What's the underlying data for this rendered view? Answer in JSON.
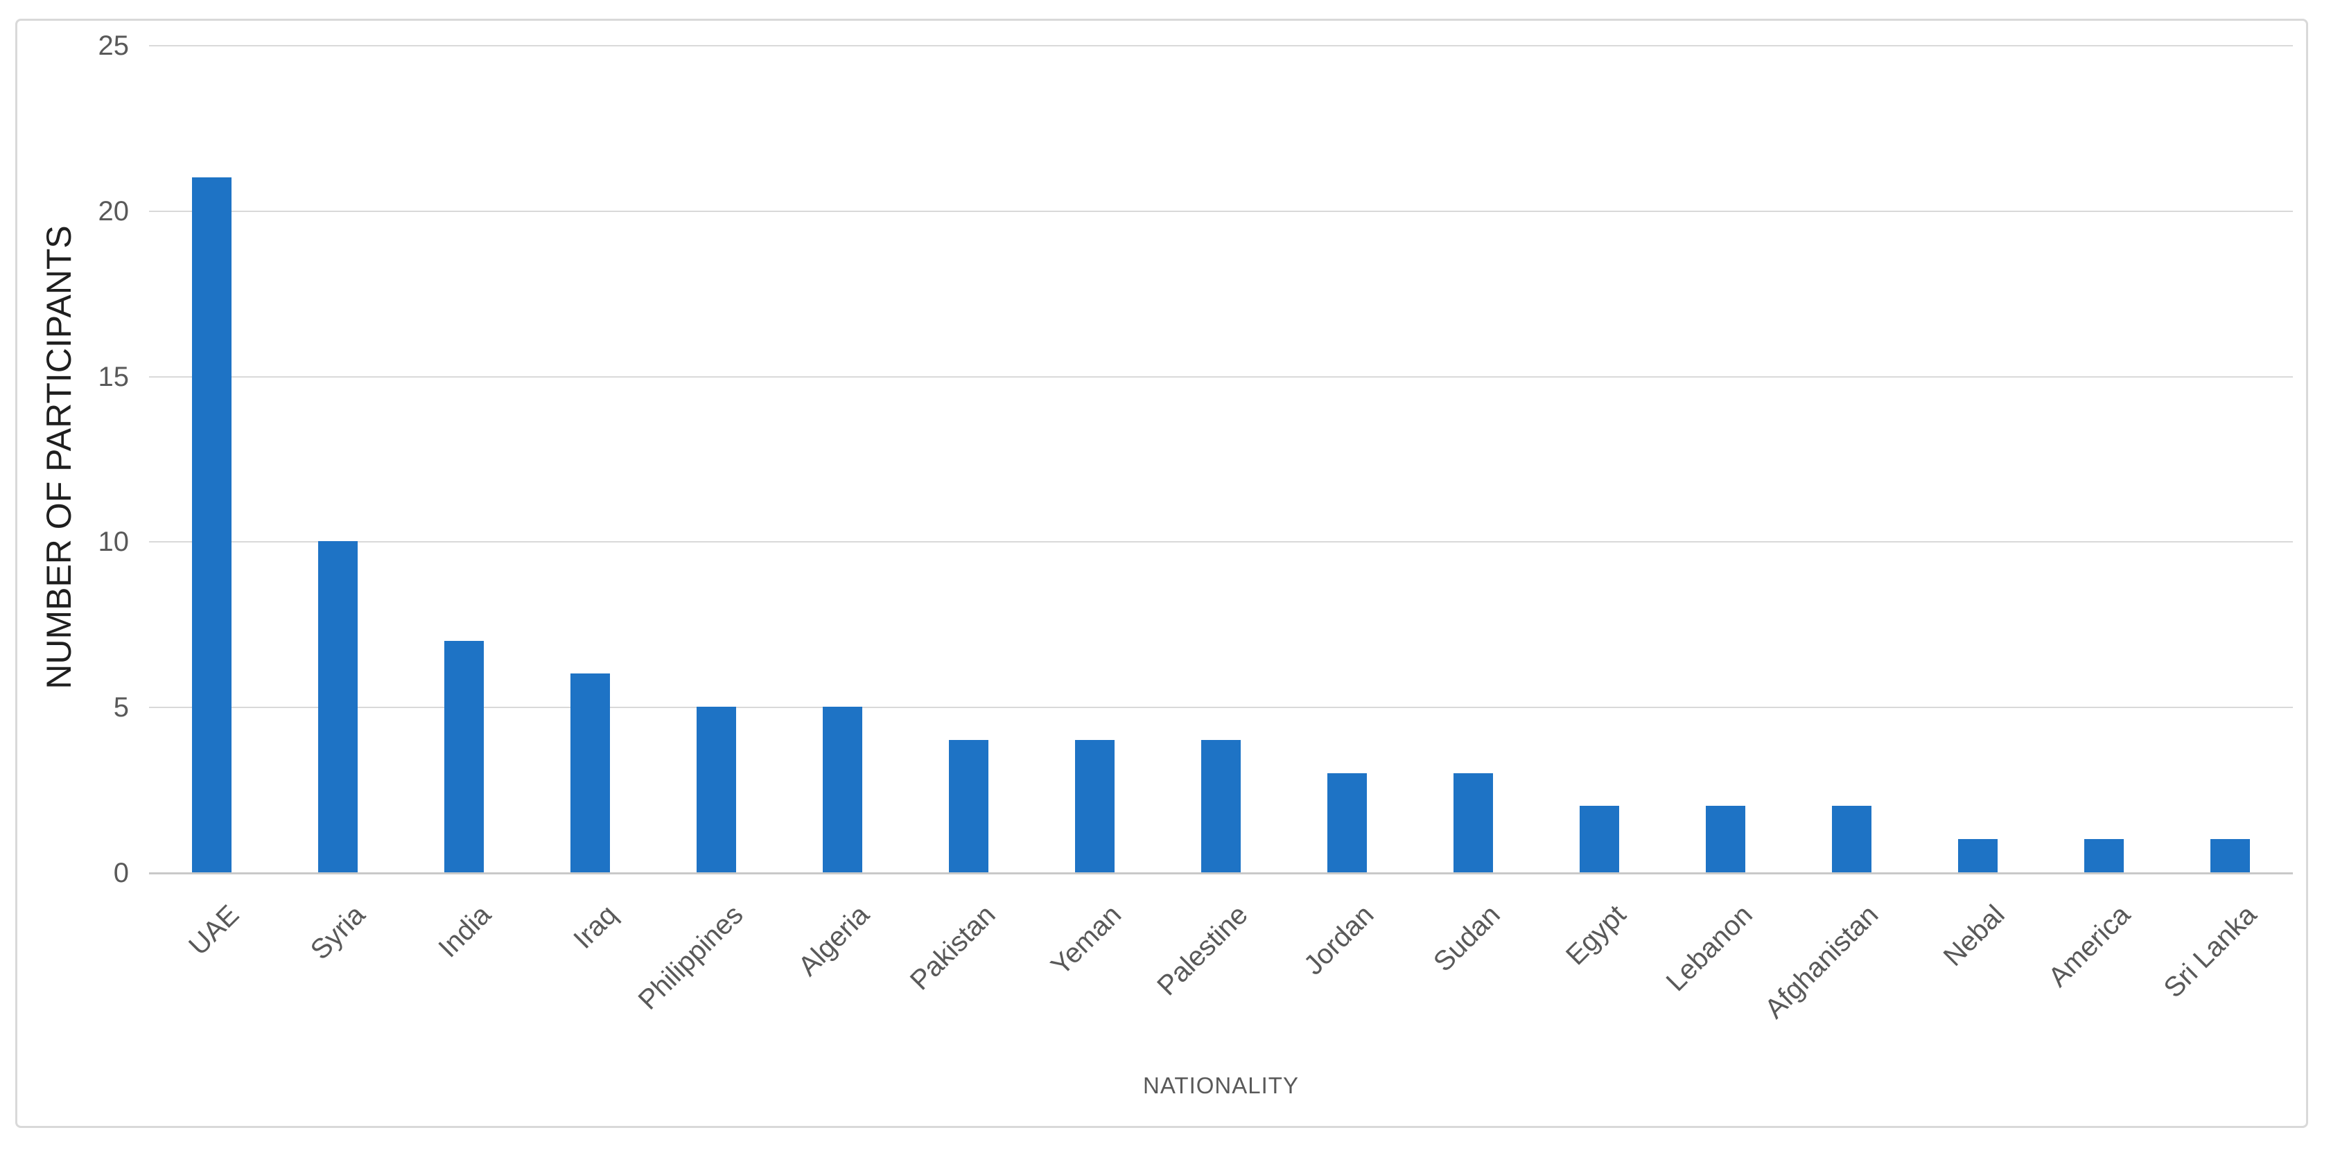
{
  "chart_data": {
    "type": "bar",
    "title": "",
    "xlabel": "NATIONALITY",
    "ylabel": "NUMBER OF PARTICIPANTS",
    "categories": [
      "UAE",
      "Syria",
      "India",
      "Iraq",
      "Philippines",
      "Algeria",
      "Pakistan",
      "Yeman",
      "Palestine",
      "Jordan",
      "Sudan",
      "Egypt",
      "Lebanon",
      "Afghanistan",
      "Nebal",
      "America",
      "Sri Lanka"
    ],
    "values": [
      21,
      10,
      7,
      6,
      5,
      5,
      4,
      4,
      4,
      3,
      3,
      2,
      2,
      2,
      1,
      1,
      1
    ],
    "ylim": [
      0,
      25
    ],
    "y_ticks": [
      0,
      5,
      10,
      15,
      20,
      25
    ],
    "grid": true,
    "legend": "none",
    "bar_color": "#1E73C5",
    "gridline_color": "#D9D9D9",
    "axis_line_color": "#C9C9C9",
    "tick_label_color": "#595959",
    "category_label_color": "#595959",
    "x_title_color": "#595959",
    "y_title_color": "#1F1F1F",
    "chart_border_color": "#D9D9D9",
    "background_color": "#FFFFFF"
  }
}
